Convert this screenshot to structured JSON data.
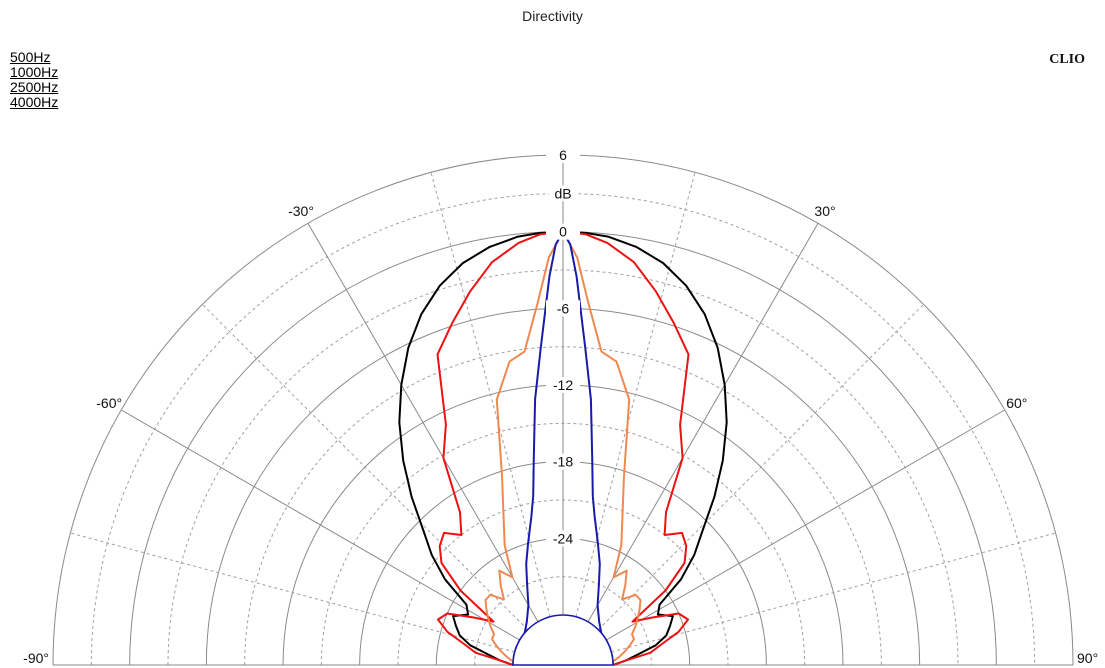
{
  "chart_data": {
    "type": "polar",
    "title": "Directivity",
    "brand": "CLIO",
    "unit_label": "dB",
    "radial_range": [
      -30,
      6
    ],
    "radial_tick_labels": [
      "6",
      "0",
      "-6",
      "-12",
      "-18",
      "-24"
    ],
    "radial_ticks": [
      6,
      0,
      -6,
      -12,
      -18,
      -24
    ],
    "radial_grid_step": 3,
    "angle_range": [
      -90,
      90
    ],
    "angle_grid_step": 15,
    "angle_tick_labels": [
      "-90°",
      "-60°",
      "-30°",
      "30°",
      "60°",
      "90°"
    ],
    "angle_ticks": [
      -90,
      -60,
      -30,
      30,
      60,
      90
    ],
    "series": [
      {
        "name": "500Hz",
        "color": "#000000",
        "angles": [
          -90,
          -86,
          -82,
          -78,
          -74,
          -70,
          -66,
          -62,
          -58,
          -54,
          -50,
          -46,
          -42,
          -38,
          -34,
          -30,
          -26,
          -22,
          -18,
          -14,
          -10,
          -6,
          -3,
          0,
          3,
          6,
          10,
          14,
          18,
          22,
          26,
          30,
          34,
          38,
          42,
          46,
          50,
          54,
          58,
          62,
          66,
          70,
          74,
          78,
          82,
          86,
          90
        ],
        "values": [
          -30,
          -29,
          -28,
          -26.5,
          -25.5,
          -25,
          -24.5,
          -25.5,
          -25,
          -22.5,
          -20.5,
          -18.7,
          -16.2,
          -13.6,
          -11,
          -8.6,
          -6.3,
          -4.3,
          -2.7,
          -1.5,
          -0.7,
          -0.2,
          -0.05,
          0,
          -0.05,
          -0.2,
          -0.7,
          -1.5,
          -2.7,
          -4.3,
          -6.3,
          -8.6,
          -11,
          -13.6,
          -16.2,
          -18.7,
          -20.5,
          -22.5,
          -25,
          -25.5,
          -24.5,
          -25,
          -25.5,
          -26.5,
          -28,
          -29,
          -30
        ]
      },
      {
        "name": "1000Hz",
        "color": "#ee1111",
        "angles": [
          -90,
          -86,
          -82,
          -78,
          -74,
          -70,
          -66,
          -62,
          -58,
          -54,
          -50,
          -46,
          -42,
          -38,
          -34,
          -30,
          -26,
          -22,
          -18,
          -14,
          -10,
          -6,
          -3,
          0,
          3,
          6,
          10,
          14,
          18,
          22,
          26,
          30,
          34,
          38,
          42,
          46,
          50,
          54,
          58,
          62,
          66,
          70,
          74,
          78,
          82,
          86,
          90
        ],
        "values": [
          -30,
          -29,
          -27,
          -26,
          -24.5,
          -23.5,
          -24,
          -26,
          -27.5,
          -24,
          -21.5,
          -20.5,
          -20,
          -21,
          -19.5,
          -15.2,
          -13,
          -7.7,
          -5.8,
          -3.8,
          -1.9,
          -0.7,
          -0.15,
          0,
          -0.15,
          -0.7,
          -1.9,
          -3.8,
          -5.8,
          -7.7,
          -13,
          -15.2,
          -19.5,
          -21,
          -20,
          -20.5,
          -21.5,
          -24,
          -27.5,
          -26,
          -24,
          -23.5,
          -24.5,
          -26,
          -27,
          -29,
          -30
        ]
      },
      {
        "name": "2500Hz",
        "color": "#f08850",
        "angles": [
          -90,
          -86,
          -82,
          -78,
          -74,
          -70,
          -66,
          -62,
          -58,
          -54,
          -50,
          -46,
          -42,
          -38,
          -34,
          -30,
          -26,
          -22,
          -18,
          -14,
          -10,
          -7,
          -4,
          -2,
          0,
          2,
          4,
          7,
          10,
          14,
          18,
          22,
          26,
          30,
          34,
          38,
          42,
          46,
          50,
          54,
          58,
          62,
          66,
          70,
          74,
          78,
          82,
          86,
          90
        ],
        "values": [
          -30,
          -30,
          -29.5,
          -29,
          -28.5,
          -28,
          -28,
          -27.5,
          -27,
          -26.5,
          -26,
          -26,
          -27,
          -26,
          -25,
          -26,
          -23.5,
          -21.5,
          -18.5,
          -12.5,
          -9.8,
          -9.2,
          -5.5,
          -2,
          0,
          -2,
          -5.5,
          -9.2,
          -9.8,
          -12.5,
          -18.5,
          -21.5,
          -23.5,
          -26,
          -25,
          -26,
          -27,
          -26,
          -26,
          -26.5,
          -27,
          -27.5,
          -28,
          -28,
          -28.5,
          -29,
          -29.5,
          -30,
          -30
        ]
      },
      {
        "name": "4000Hz",
        "color": "#1a1aaa",
        "angles": [
          -90,
          -80,
          -70,
          -60,
          -50,
          -40,
          -30,
          -24,
          -20,
          -16,
          -12,
          -10,
          -8,
          -6,
          -4,
          -2,
          -1,
          0,
          1,
          2,
          4,
          6,
          8,
          10,
          12,
          16,
          20,
          24,
          30,
          40,
          50,
          60,
          70,
          80,
          90
        ],
        "values": [
          -30,
          -30,
          -30,
          -30,
          -30,
          -29.5,
          -28.5,
          -27,
          -25.5,
          -24,
          -22,
          -20.5,
          -17.5,
          -13,
          -9,
          -3.5,
          -1,
          0,
          -1,
          -3.5,
          -9,
          -13,
          -17.5,
          -20.5,
          -22,
          -24,
          -25.5,
          -27,
          -28.5,
          -29.5,
          -30,
          -30,
          -30,
          -30,
          -30
        ]
      }
    ]
  }
}
